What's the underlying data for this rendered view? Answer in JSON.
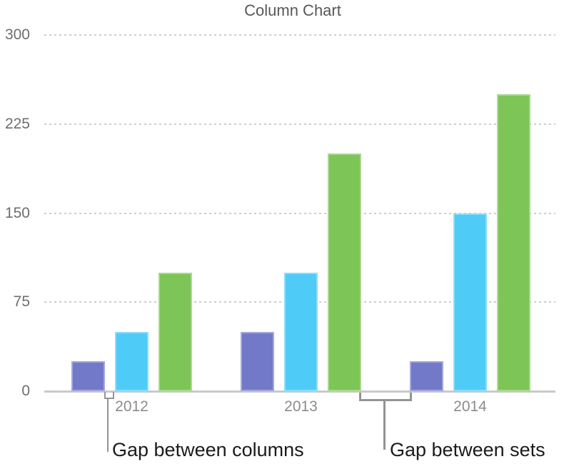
{
  "chart_data": {
    "type": "bar",
    "title": "Column Chart",
    "categories": [
      "2012",
      "2013",
      "2014"
    ],
    "series": [
      {
        "color_name": "purple",
        "color": "#7379C9",
        "values": [
          25,
          50,
          25
        ]
      },
      {
        "color_name": "blue",
        "color": "#4FCBF8",
        "values": [
          50,
          100,
          150
        ]
      },
      {
        "color_name": "green",
        "color": "#7CC556",
        "values": [
          100,
          200,
          250
        ]
      }
    ],
    "yticks": [
      0,
      75,
      150,
      225,
      300
    ],
    "ylim": [
      0,
      300
    ],
    "grid": "horizontal-dotted",
    "legend": "none",
    "annotations": [
      {
        "label": "Gap between columns"
      },
      {
        "label": "Gap between sets"
      }
    ],
    "colors": {
      "title_text": "#585858",
      "ytick_text": "#6e6e6e",
      "xtick_text": "#8b8b8b",
      "gridline": "#cdcdcd",
      "baseline": "#c9c9c9",
      "annotation_line": "#949494",
      "annotation_text": "#1b1b1b",
      "background": "#ffffff"
    }
  }
}
